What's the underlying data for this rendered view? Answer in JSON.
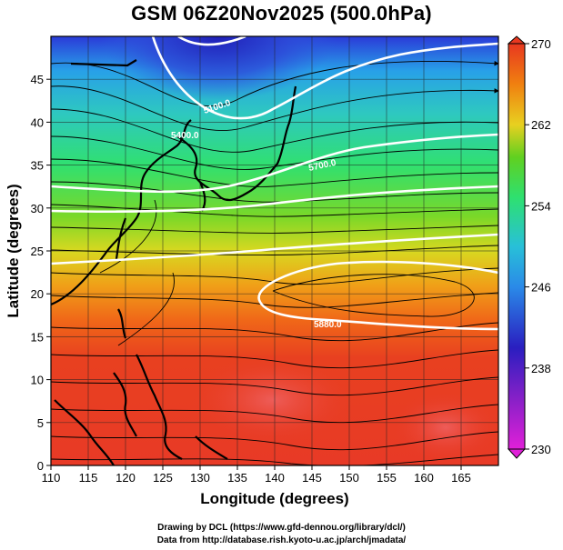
{
  "title": "GSM 06Z20Nov2025 (500.0hPa)",
  "x_axis": {
    "label": "Longitude (degrees)",
    "range": [
      110,
      170
    ],
    "ticks": [
      "110",
      "115",
      "120",
      "125",
      "130",
      "135",
      "140",
      "145",
      "150",
      "155",
      "160",
      "165"
    ]
  },
  "y_axis": {
    "label": "Latitude  (degrees)",
    "range": [
      0,
      50
    ],
    "ticks": [
      "0",
      "5",
      "10",
      "15",
      "20",
      "25",
      "30",
      "35",
      "40",
      "45"
    ]
  },
  "colorbar": {
    "range": [
      230,
      270
    ],
    "labels": [
      "230",
      "238",
      "246",
      "254",
      "262",
      "270"
    ],
    "colors": [
      "#e020d8",
      "#2a1ec0",
      "#28a8e8",
      "#2ee070",
      "#40c820",
      "#e8d020",
      "#f08010",
      "#e83820"
    ]
  },
  "contours": [
    {
      "label": "5880.0",
      "lat_at": 20
    },
    {
      "label": "5400.0"
    },
    {
      "label": "5700.0"
    },
    {
      "label": "5100.0"
    }
  ],
  "credits": {
    "line1": "Drawing by DCL (https://www.gfd-dennou.org/library/dcl/)",
    "line2": "Data from http://database.rish.kyoto-u.ac.jp/arch/jmadata/"
  }
}
